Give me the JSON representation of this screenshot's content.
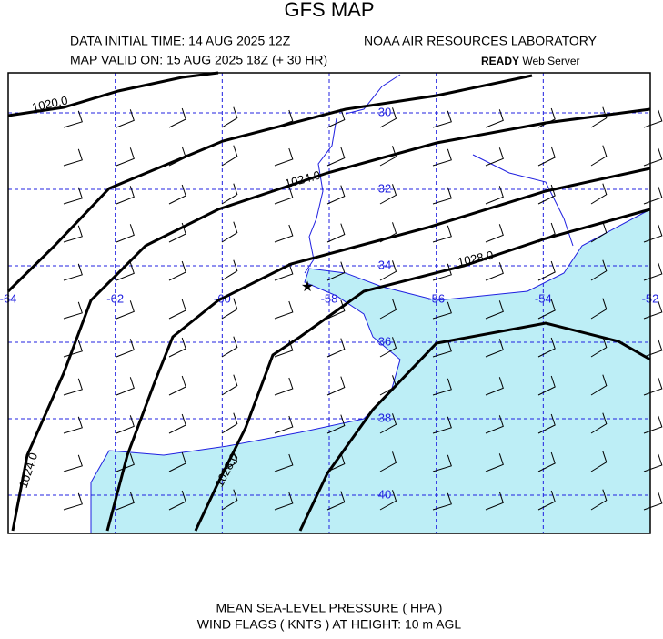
{
  "header": {
    "title": "GFS MAP",
    "initial_time": "DATA INITIAL TIME: 14 AUG 2025 12Z",
    "lab": "NOAA AIR RESOURCES LABORATORY",
    "valid_time": "MAP VALID ON: 15 AUG 2025 18Z (+ 30 HR)",
    "server_bold": "READY",
    "server": "Web Server"
  },
  "map": {
    "lat_labels": [
      "30",
      "32",
      "34",
      "36",
      "38",
      "40"
    ],
    "lon_labels": [
      "-64",
      "-62",
      "-60",
      "-58",
      "-56",
      "-54",
      "-52"
    ],
    "contour_labels": [
      "1020.0",
      "1024.0",
      "1028.0",
      "1024.0",
      "1028.0"
    ]
  },
  "footer": {
    "line1": "MEAN SEA-LEVEL PRESSURE ( HPA )",
    "line2": "WIND FLAGS ( KNTS ) AT HEIGHT: 10 m AGL"
  }
}
